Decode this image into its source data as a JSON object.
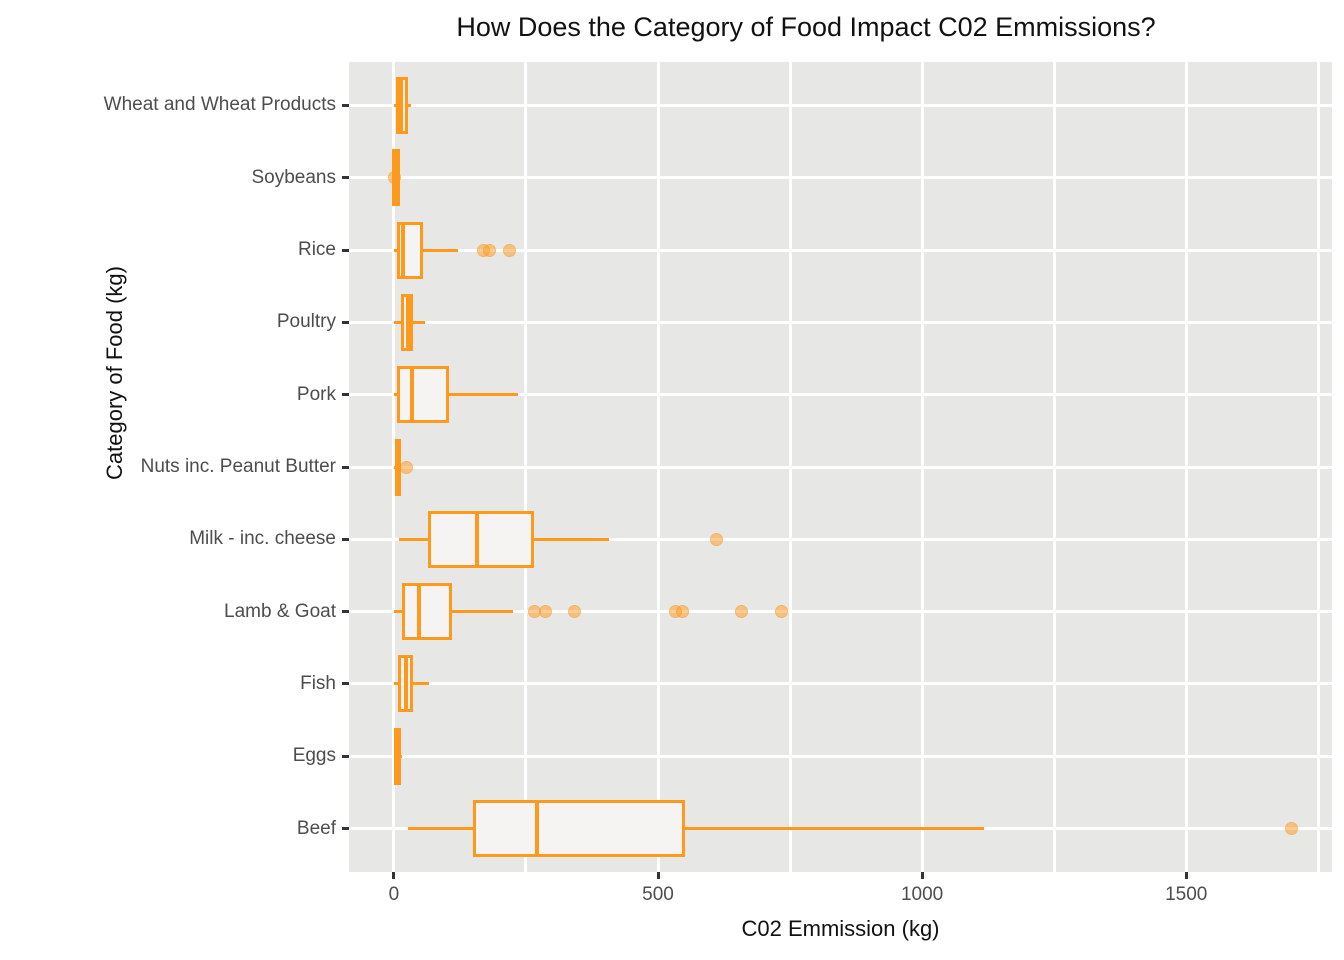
{
  "title": "How Does the Category of Food Impact C02 Emmissions?",
  "chart_data": {
    "type": "boxplot",
    "orientation": "horizontal",
    "title": "How Does the Category of Food Impact C02 Emmissions?",
    "xlabel": "C02 Emmission (kg)",
    "ylabel": "Category of Food (kg)",
    "x_ticks": [
      0,
      500,
      1000,
      1500
    ],
    "x_gridlines": [
      0,
      250,
      500,
      750,
      1000,
      1250,
      1500,
      1750
    ],
    "xlim_display": [
      -85,
      1776
    ],
    "xlim_data": [
      0,
      1700
    ],
    "grid": true,
    "legend": "none",
    "categories_top_to_bottom": [
      "Wheat and Wheat Products",
      "Soybeans",
      "Rice",
      "Poultry",
      "Pork",
      "Nuts inc. Peanut Butter",
      "Milk - inc. cheese",
      "Lamb & Goat",
      "Fish",
      "Eggs",
      "Beef"
    ],
    "series": [
      {
        "category": "Wheat and Wheat Products",
        "min": 0,
        "q1": 4,
        "median": 14,
        "q3": 26,
        "max": 33,
        "outliers": []
      },
      {
        "category": "Soybeans",
        "min": 0,
        "q1": 0,
        "median": 1,
        "q3": 2,
        "max": 3,
        "outliers": [
          2
        ]
      },
      {
        "category": "Rice",
        "min": 0,
        "q1": 6,
        "median": 17,
        "q3": 56,
        "max": 122,
        "outliers": [
          170,
          181,
          219
        ]
      },
      {
        "category": "Poultry",
        "min": 0,
        "q1": 13,
        "median": 27,
        "q3": 37,
        "max": 59,
        "outliers": []
      },
      {
        "category": "Pork",
        "min": 0,
        "q1": 6,
        "median": 34,
        "q3": 105,
        "max": 235,
        "outliers": []
      },
      {
        "category": "Nuts inc. Peanut Butter",
        "min": 0,
        "q1": 2,
        "median": 5,
        "q3": 9,
        "max": 12,
        "outliers": [
          23
        ]
      },
      {
        "category": "Milk - inc. cheese",
        "min": 10,
        "q1": 64,
        "median": 158,
        "q3": 266,
        "max": 407,
        "outliers": [
          610
        ]
      },
      {
        "category": "Lamb & Goat",
        "min": 0,
        "q1": 15,
        "median": 47,
        "q3": 110,
        "max": 226,
        "outliers": [
          266,
          287,
          342,
          533,
          546,
          658,
          734
        ]
      },
      {
        "category": "Fish",
        "min": 0,
        "q1": 8,
        "median": 22,
        "q3": 37,
        "max": 67,
        "outliers": []
      },
      {
        "category": "Eggs",
        "min": 0,
        "q1": 1,
        "median": 7,
        "q3": 13,
        "max": 16,
        "outliers": []
      },
      {
        "category": "Beef",
        "min": 26,
        "q1": 150,
        "median": 270,
        "q3": 552,
        "max": 1118,
        "outliers": [
          1700
        ]
      }
    ],
    "colors": {
      "box_stroke": "#FD9A1E",
      "box_fill": "#F5F4F2",
      "outlier_fill": "rgba(253,154,30,0.5)",
      "panel_bg": "#E7E7E6",
      "gridline": "#FFFFFF",
      "tick_label": "#4D4D4D",
      "axis_title": "#111111",
      "tick_mark": "#333333"
    }
  }
}
